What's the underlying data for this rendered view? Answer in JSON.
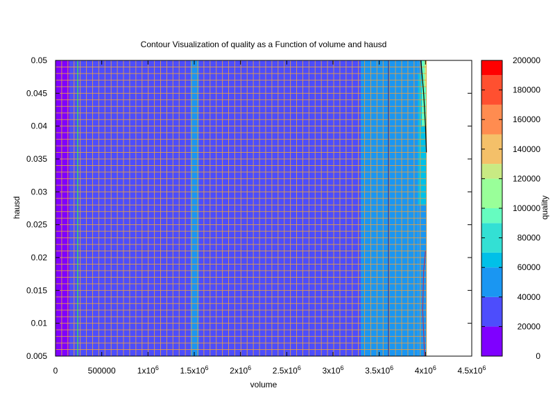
{
  "chart_data": {
    "type": "heatmap",
    "title": "Contour Visualization of quality as a Function of volume and hausd",
    "xlabel": "volume",
    "ylabel": "hausd",
    "colorbar_label": "quality",
    "xlim": [
      0,
      4500000
    ],
    "ylim": [
      0.005,
      0.05
    ],
    "x_ticks": [
      {
        "value": 0,
        "label": "0"
      },
      {
        "value": 500000,
        "label": "500000"
      },
      {
        "value": 1000000,
        "label": "1x10",
        "exp": "6"
      },
      {
        "value": 1500000,
        "label": "1.5x10",
        "exp": "6"
      },
      {
        "value": 2000000,
        "label": "2x10",
        "exp": "6"
      },
      {
        "value": 2500000,
        "label": "2.5x10",
        "exp": "6"
      },
      {
        "value": 3000000,
        "label": "3x10",
        "exp": "6"
      },
      {
        "value": 3500000,
        "label": "3.5x10",
        "exp": "6"
      },
      {
        "value": 4000000,
        "label": "4x10",
        "exp": "6"
      },
      {
        "value": 4500000,
        "label": "4.5x10",
        "exp": "6"
      }
    ],
    "y_ticks": [
      {
        "value": 0.005,
        "label": "0.005"
      },
      {
        "value": 0.01,
        "label": "0.01"
      },
      {
        "value": 0.015,
        "label": "0.015"
      },
      {
        "value": 0.02,
        "label": "0.02"
      },
      {
        "value": 0.025,
        "label": "0.025"
      },
      {
        "value": 0.03,
        "label": "0.03"
      },
      {
        "value": 0.035,
        "label": "0.035"
      },
      {
        "value": 0.04,
        "label": "0.04"
      },
      {
        "value": 0.045,
        "label": "0.045"
      },
      {
        "value": 0.05,
        "label": "0.05"
      }
    ],
    "colorbar": {
      "min": 0,
      "max": 200000,
      "ticks": [
        {
          "value": 0,
          "label": "0"
        },
        {
          "value": 20000,
          "label": "20000"
        },
        {
          "value": 40000,
          "label": "40000"
        },
        {
          "value": 60000,
          "label": "60000"
        },
        {
          "value": 80000,
          "label": "80000"
        },
        {
          "value": 100000,
          "label": "100000"
        },
        {
          "value": 120000,
          "label": "120000"
        },
        {
          "value": 140000,
          "label": "140000"
        },
        {
          "value": 160000,
          "label": "160000"
        },
        {
          "value": 180000,
          "label": "180000"
        },
        {
          "value": 200000,
          "label": "200000"
        }
      ],
      "levels": [
        {
          "from": 0,
          "to": 20000,
          "color": "#7f00ff"
        },
        {
          "from": 20000,
          "to": 40000,
          "color": "#4d4dfc"
        },
        {
          "from": 40000,
          "to": 60000,
          "color": "#1a96f2"
        },
        {
          "from": 60000,
          "to": 70000,
          "color": "#00c0e8"
        },
        {
          "from": 70000,
          "to": 90000,
          "color": "#33e0d4"
        },
        {
          "from": 90000,
          "to": 100000,
          "color": "#66fcc0"
        },
        {
          "from": 100000,
          "to": 120000,
          "color": "#99ff99"
        },
        {
          "from": 120000,
          "to": 130000,
          "color": "#c8ea83"
        },
        {
          "from": 130000,
          "to": 150000,
          "color": "#f4c069"
        },
        {
          "from": 150000,
          "to": 170000,
          "color": "#ff8c50"
        },
        {
          "from": 170000,
          "to": 190000,
          "color": "#ff5030"
        },
        {
          "from": 190000,
          "to": 200000,
          "color": "#ff0000"
        }
      ]
    },
    "grid_color": "#e8a040",
    "regions": [
      {
        "x0": 0,
        "x1": 150000,
        "level": 0
      },
      {
        "x0": 150000,
        "x1": 3300000,
        "level": 1
      },
      {
        "x0": 1460000,
        "x1": 1550000,
        "level": 2
      },
      {
        "x0": 3300000,
        "x1": 3920000,
        "level": 2
      },
      {
        "x0": 3920000,
        "x1": 4010000,
        "level": 2
      }
    ],
    "upper_right_patch": [
      {
        "x0": 3920000,
        "x1": 4010000,
        "y0": 0.028,
        "y1": 0.048,
        "level": 3
      },
      {
        "x0": 3960000,
        "x1": 4010000,
        "y0": 0.04,
        "y1": 0.05,
        "level": 5
      },
      {
        "x0": 3990000,
        "x1": 4010000,
        "y0": 0.046,
        "y1": 0.05,
        "level": 7
      }
    ],
    "contour_lines": [
      {
        "color": "#33ff33",
        "points": [
          [
            240000,
            0.005
          ],
          [
            240000,
            0.05
          ]
        ]
      },
      {
        "color": "#333399",
        "points": [
          [
            3600000,
            0.005
          ],
          [
            3600000,
            0.05
          ]
        ]
      },
      {
        "color": "#000000",
        "points": [
          [
            3950000,
            0.05
          ],
          [
            3980000,
            0.045
          ],
          [
            4000000,
            0.04
          ],
          [
            4010000,
            0.036
          ]
        ]
      },
      {
        "color": "#aa3366",
        "points": [
          [
            4000000,
            0.021
          ],
          [
            3980000,
            0.018
          ],
          [
            3970000,
            0.012
          ],
          [
            3990000,
            0.005
          ]
        ]
      }
    ],
    "grid_on": true
  }
}
